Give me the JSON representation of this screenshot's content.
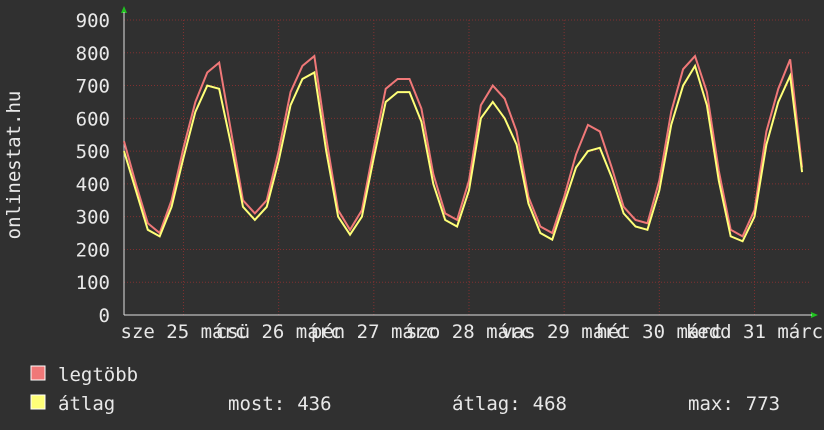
{
  "chart_data": {
    "type": "line",
    "title": "onlinestat.hu",
    "x": [
      0,
      3,
      6,
      9,
      12,
      15,
      18,
      21,
      24,
      27,
      30,
      33,
      36,
      39,
      42,
      45,
      48,
      51,
      54,
      57,
      60,
      63,
      66,
      69,
      72,
      75,
      78,
      81,
      84,
      87,
      90,
      93,
      96,
      99,
      102,
      105,
      108,
      111,
      114,
      117,
      120,
      123,
      126,
      129,
      132,
      135,
      138,
      141,
      144,
      147,
      150,
      153,
      156,
      159,
      162,
      165,
      168,
      171
    ],
    "xlim": [
      0,
      173
    ],
    "xticks": [
      {
        "value": 15,
        "label": "sze 25 márc"
      },
      {
        "value": 39,
        "label": "csü 26 márc"
      },
      {
        "value": 63,
        "label": "pén 27 márc"
      },
      {
        "value": 87,
        "label": "szo 28 márc"
      },
      {
        "value": 111,
        "label": "vas 29 márc"
      },
      {
        "value": 135,
        "label": "hét 30 márc"
      },
      {
        "value": 159,
        "label": "kedd 31 márc"
      }
    ],
    "ylim": [
      0,
      900
    ],
    "yticks": [
      0,
      100,
      200,
      300,
      400,
      500,
      600,
      700,
      800,
      900
    ],
    "grid": true,
    "series": [
      {
        "name": "legtöbb",
        "color": "#f07878",
        "values": [
          530,
          400,
          280,
          250,
          350,
          510,
          650,
          740,
          770,
          560,
          350,
          310,
          350,
          500,
          680,
          760,
          790,
          540,
          320,
          260,
          320,
          510,
          690,
          720,
          720,
          630,
          430,
          310,
          290,
          410,
          640,
          700,
          660,
          560,
          360,
          270,
          250,
          360,
          490,
          580,
          560,
          450,
          330,
          290,
          280,
          410,
          620,
          750,
          790,
          680,
          440,
          260,
          240,
          320,
          560,
          690,
          780,
          450
        ]
      },
      {
        "name": "átlag",
        "color": "#ffff78",
        "values": [
          500,
          380,
          260,
          240,
          330,
          480,
          620,
          700,
          690,
          520,
          330,
          290,
          330,
          470,
          640,
          720,
          740,
          500,
          300,
          245,
          300,
          480,
          650,
          680,
          680,
          590,
          400,
          290,
          270,
          380,
          600,
          650,
          600,
          520,
          340,
          250,
          230,
          340,
          450,
          500,
          510,
          420,
          310,
          270,
          260,
          380,
          580,
          700,
          760,
          640,
          410,
          240,
          225,
          300,
          520,
          650,
          730,
          436
        ]
      }
    ],
    "stats": [
      {
        "label": "most:",
        "value": 436
      },
      {
        "label": "átlag:",
        "value": 468
      },
      {
        "label": "max:",
        "value": 773
      }
    ]
  }
}
